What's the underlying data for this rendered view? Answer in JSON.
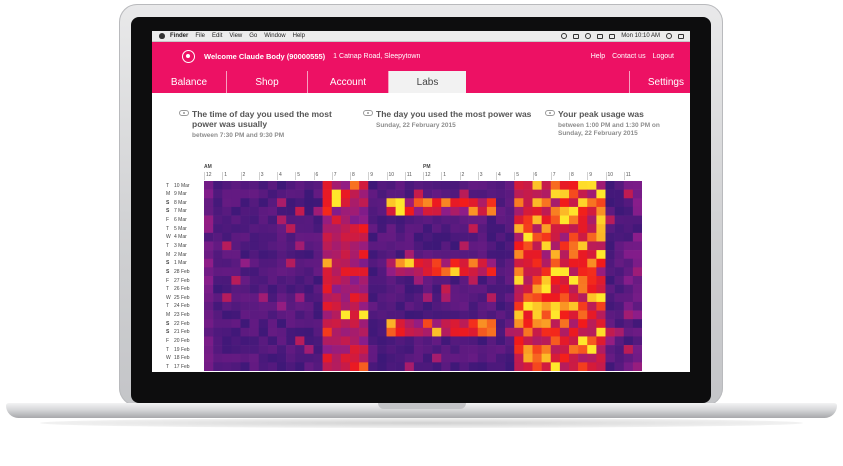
{
  "menubar": {
    "app": "Finder",
    "items": [
      "File",
      "Edit",
      "View",
      "Go",
      "Window",
      "Help"
    ],
    "clock": "Mon 10:10 AM"
  },
  "header": {
    "welcome": "Welcome Claude Body (90000555)",
    "address": "1 Catnap Road, Sleepytown",
    "links": [
      "Help",
      "Contact us",
      "Logout"
    ]
  },
  "nav": {
    "tabs": [
      {
        "label": "Balance",
        "active": false
      },
      {
        "label": "Shop",
        "active": false
      },
      {
        "label": "Account",
        "active": false
      },
      {
        "label": "Labs",
        "active": true
      },
      {
        "label": "",
        "active": false
      },
      {
        "label": "Settings",
        "active": false
      }
    ]
  },
  "insights": [
    {
      "title": "The time of day you used the most power was usually",
      "detail": "between 7:30 PM and 9:30 PM"
    },
    {
      "title": "The day you used the most power was",
      "detail": "Sunday, 22 February 2015"
    },
    {
      "title": "Your peak usage was",
      "detail": "between 1:00 PM and 1:30 PM on Sunday, 22 February 2015"
    }
  ],
  "heatmap": {
    "am_label": "AM",
    "pm_label": "PM",
    "hour_labels": [
      "12",
      "1",
      "2",
      "3",
      "4",
      "5",
      "6",
      "7",
      "8",
      "9",
      "10",
      "11",
      "12",
      "1",
      "2",
      "3",
      "4",
      "5",
      "6",
      "7",
      "8",
      "9",
      "10",
      "11"
    ],
    "days": [
      {
        "dow": "T",
        "date": "10 Mar"
      },
      {
        "dow": "M",
        "date": "9 Mar"
      },
      {
        "dow": "S",
        "date": "8 Mar"
      },
      {
        "dow": "S",
        "date": "7 Mar"
      },
      {
        "dow": "F",
        "date": "6 Mar"
      },
      {
        "dow": "T",
        "date": "5 Mar"
      },
      {
        "dow": "W",
        "date": "4 Mar"
      },
      {
        "dow": "T",
        "date": "3 Mar"
      },
      {
        "dow": "M",
        "date": "2 Mar"
      },
      {
        "dow": "S",
        "date": "1 Mar"
      },
      {
        "dow": "S",
        "date": "28 Feb"
      },
      {
        "dow": "F",
        "date": "27 Feb"
      },
      {
        "dow": "T",
        "date": "26 Feb"
      },
      {
        "dow": "W",
        "date": "25 Feb"
      },
      {
        "dow": "T",
        "date": "24 Feb"
      },
      {
        "dow": "M",
        "date": "23 Feb"
      },
      {
        "dow": "S",
        "date": "22 Feb"
      },
      {
        "dow": "S",
        "date": "21 Feb"
      },
      {
        "dow": "F",
        "date": "20 Feb"
      },
      {
        "dow": "T",
        "date": "19 Feb"
      },
      {
        "dow": "W",
        "date": "18 Feb"
      },
      {
        "dow": "T",
        "date": "17 Feb"
      }
    ],
    "colors": {
      "low": "#1f1670",
      "mid": "#8a1d8c",
      "high": "#f21a1a",
      "peak": "#ffe82b"
    }
  }
}
